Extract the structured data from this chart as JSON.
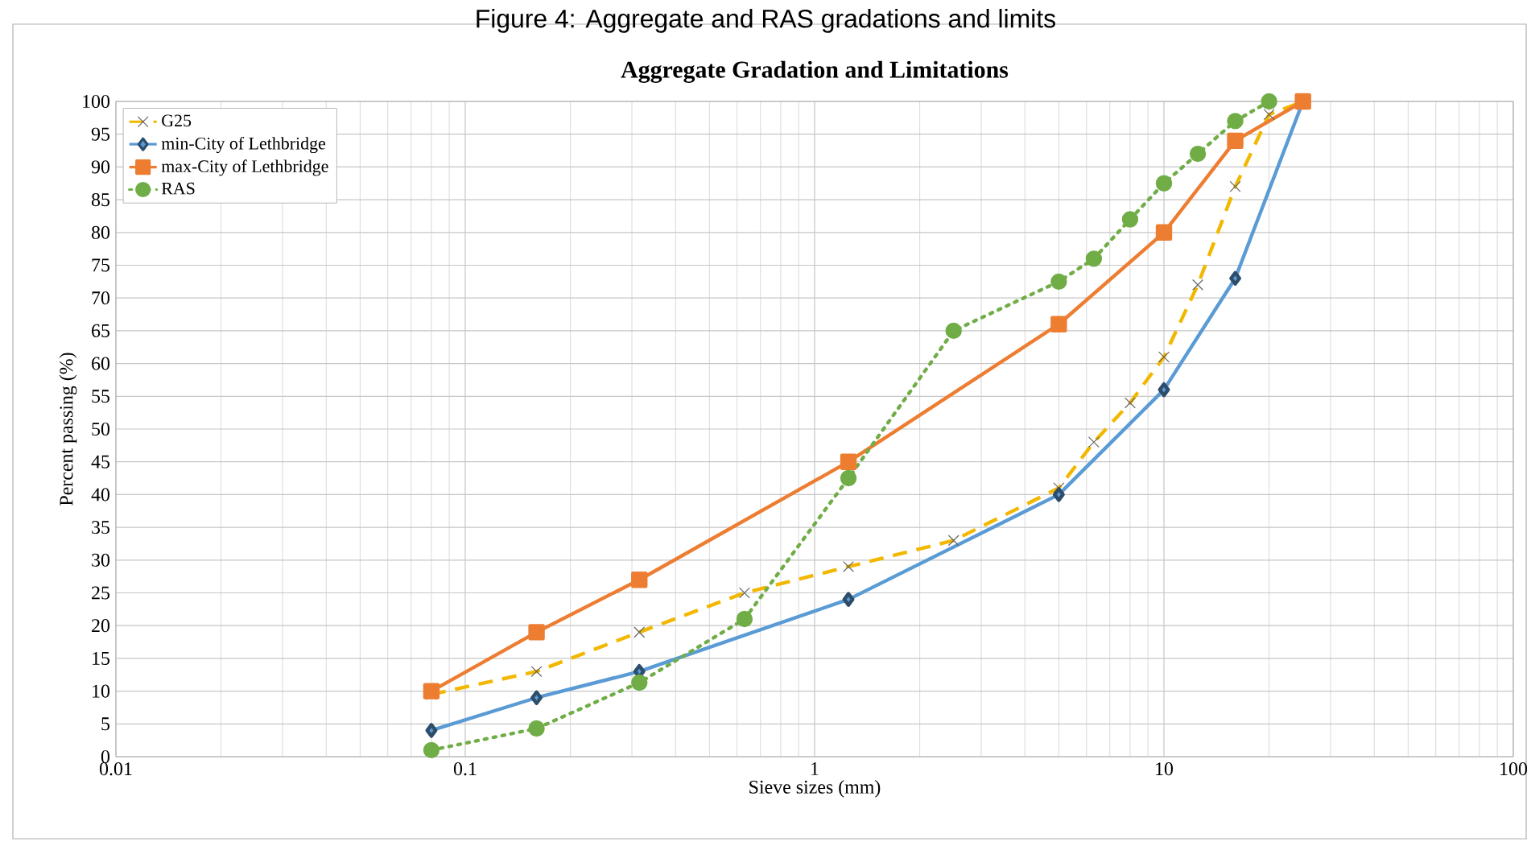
{
  "chart_data": {
    "type": "line",
    "title": "Aggregate Gradation and Limitations",
    "xlabel": "Sieve sizes (mm)",
    "ylabel": "Percent passing (%)",
    "annotations": [
      "Figure 4: Aggregate and RAS gradations and limits"
    ],
    "log": "x",
    "grid": true,
    "legend": "top left",
    "xlim": [
      0.01,
      100
    ],
    "xticks": [
      0.01,
      0.1,
      1,
      10,
      100
    ],
    "ylim": [
      0,
      100
    ],
    "yticks": [
      0,
      5,
      10,
      15,
      20,
      25,
      30,
      35,
      40,
      45,
      50,
      55,
      60,
      65,
      70,
      75,
      80,
      85,
      90,
      95,
      100
    ],
    "series": [
      {
        "name": "G25",
        "color": "#f2b800",
        "marker": "cross",
        "line_style": "dashed",
        "x": [
          0.08,
          0.16,
          0.315,
          0.63,
          1.25,
          2.5,
          5,
          6.3,
          8,
          10,
          12.5,
          16,
          20,
          25
        ],
        "values": [
          9.5,
          13,
          19,
          25,
          29,
          33,
          41,
          48,
          54,
          61,
          72,
          87,
          98,
          100
        ]
      },
      {
        "name": "min-City of Lethbridge",
        "color": "#5b9bd5",
        "marker": "diamond",
        "line_style": "solid",
        "x": [
          0.08,
          0.16,
          0.315,
          1.25,
          5,
          10,
          16,
          25
        ],
        "values": [
          4,
          9,
          13,
          24,
          40,
          56,
          73,
          100
        ]
      },
      {
        "name": "max-City of Lethbridge",
        "color": "#ed7d31",
        "marker": "square",
        "line_style": "solid",
        "x": [
          0.08,
          0.16,
          0.315,
          1.25,
          5,
          10,
          16,
          25
        ],
        "values": [
          10,
          19,
          27,
          45,
          66,
          80,
          94,
          100
        ]
      },
      {
        "name": "RAS",
        "color": "#70ad47",
        "marker": "circle",
        "line_style": "dotted",
        "x": [
          0.08,
          0.16,
          0.315,
          0.63,
          1.25,
          2.5,
          5,
          6.3,
          8,
          10,
          12.5,
          16,
          20
        ],
        "values": [
          1,
          4.3,
          11.3,
          21,
          42.5,
          65,
          72.5,
          76,
          82,
          87.5,
          92,
          97,
          100
        ]
      }
    ]
  }
}
